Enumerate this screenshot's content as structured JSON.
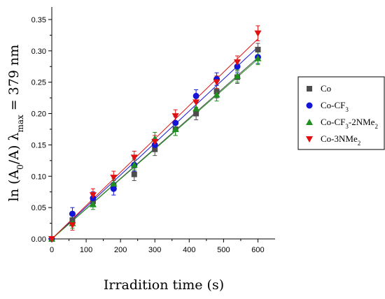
{
  "chart_data": {
    "type": "scatter",
    "xlabel": "Irradition time (s)",
    "ylabel": "ln (A0/A) λmax = 379 nm",
    "ylabel_parts": {
      "pre": "ln (A",
      "sub0": "0",
      "mid": "/A) λ",
      "submax": "max",
      "post": " = 379 nm"
    },
    "xlim": [
      0,
      650
    ],
    "ylim": [
      0,
      0.37
    ],
    "xticks": [
      0,
      100,
      200,
      300,
      400,
      500,
      600
    ],
    "yticks": [
      "0.00",
      "0.05",
      "0.10",
      "0.15",
      "0.20",
      "0.25",
      "0.30",
      "0.35"
    ],
    "legend_position": "right",
    "grid": false,
    "series": [
      {
        "name": "Co",
        "legend": {
          "text": "Co",
          "sub": "",
          "after": "",
          "sub2": ""
        },
        "marker": "square",
        "color": "#4d4d4d",
        "x": [
          0,
          60,
          120,
          180,
          240,
          300,
          360,
          420,
          480,
          540,
          600
        ],
        "y": [
          0.0,
          0.03,
          0.06,
          0.085,
          0.103,
          0.143,
          0.175,
          0.2,
          0.235,
          0.258,
          0.302
        ],
        "err": [
          0.0,
          0.008,
          0.008,
          0.008,
          0.01,
          0.01,
          0.01,
          0.01,
          0.01,
          0.01,
          0.01
        ],
        "fit_slope": 0.000482
      },
      {
        "name": "Co-CF3",
        "legend": {
          "text": "Co-CF",
          "sub": "3",
          "after": "",
          "sub2": ""
        },
        "marker": "circle",
        "color": "#1515d6",
        "x": [
          0,
          60,
          120,
          180,
          240,
          300,
          360,
          420,
          480,
          540,
          600
        ],
        "y": [
          0.0,
          0.04,
          0.065,
          0.08,
          0.118,
          0.15,
          0.185,
          0.228,
          0.255,
          0.275,
          0.29
        ],
        "err": [
          0.0,
          0.01,
          0.01,
          0.01,
          0.01,
          0.01,
          0.01,
          0.01,
          0.01,
          0.01,
          0.01
        ],
        "fit_slope": 0.00051
      },
      {
        "name": "Co-CF3-2NMe2",
        "legend": {
          "text": "Co-CF",
          "sub": "3",
          "after": "-2NMe",
          "sub2": "2"
        },
        "marker": "triangle-up",
        "color": "#1f8f1f",
        "x": [
          0,
          60,
          120,
          180,
          240,
          300,
          360,
          420,
          480,
          540,
          600
        ],
        "y": [
          0.0,
          0.025,
          0.055,
          0.088,
          0.118,
          0.16,
          0.175,
          0.208,
          0.23,
          0.26,
          0.288
        ],
        "err": [
          0.0,
          0.008,
          0.008,
          0.008,
          0.008,
          0.01,
          0.01,
          0.01,
          0.01,
          0.01,
          0.01
        ],
        "fit_slope": 0.000478
      },
      {
        "name": "Co-3NMe2",
        "legend": {
          "text": "Co-3NMe",
          "sub": "2",
          "after": "",
          "sub2": ""
        },
        "marker": "triangle-down",
        "color": "#e01010",
        "x": [
          0,
          60,
          120,
          180,
          240,
          300,
          360,
          420,
          480,
          540,
          600
        ],
        "y": [
          0.0,
          0.022,
          0.07,
          0.098,
          0.13,
          0.155,
          0.196,
          0.218,
          0.25,
          0.282,
          0.328
        ],
        "err": [
          0.0,
          0.008,
          0.01,
          0.01,
          0.01,
          0.01,
          0.01,
          0.01,
          0.01,
          0.01,
          0.012
        ],
        "fit_slope": 0.000532
      }
    ]
  }
}
